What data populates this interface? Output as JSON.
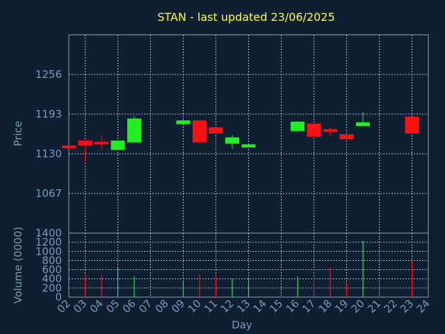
{
  "chart_data": {
    "title": "STAN - last updated 23/06/2025",
    "xlabel": "Day",
    "colors": {
      "up": "#22ee22",
      "down": "#ff1111",
      "background": "#0f1f33",
      "text": "#7a9ab8",
      "title": "#ffff33"
    },
    "x_ticks": [
      "02",
      "03",
      "04",
      "05",
      "06",
      "07",
      "08",
      "09",
      "10",
      "11",
      "12",
      "13",
      "14",
      "15",
      "16",
      "17",
      "18",
      "19",
      "20",
      "21",
      "22",
      "23",
      "24"
    ],
    "price_panel": {
      "type": "candlestick",
      "ylabel": "Price",
      "yticks": [
        1067,
        1130,
        1193,
        1256
      ],
      "ylim": [
        1004,
        1319
      ],
      "candles": [
        {
          "day": 2,
          "open": 1143,
          "close": 1139,
          "high": 1143,
          "low": 1139
        },
        {
          "day": 3,
          "open": 1151,
          "close": 1143,
          "high": 1152,
          "low": 1116
        },
        {
          "day": 4,
          "open": 1149,
          "close": 1145,
          "high": 1160,
          "low": 1137
        },
        {
          "day": 5,
          "open": 1136,
          "close": 1151,
          "high": 1151,
          "low": 1136
        },
        {
          "day": 6,
          "open": 1148,
          "close": 1186,
          "high": 1190,
          "low": 1148
        },
        {
          "day": 9,
          "open": 1177,
          "close": 1183,
          "high": 1185,
          "low": 1177
        },
        {
          "day": 10,
          "open": 1183,
          "close": 1148,
          "high": 1183,
          "low": 1148
        },
        {
          "day": 11,
          "open": 1172,
          "close": 1162,
          "high": 1172,
          "low": 1162
        },
        {
          "day": 12,
          "open": 1146,
          "close": 1156,
          "high": 1160,
          "low": 1138
        },
        {
          "day": 13,
          "open": 1140,
          "close": 1145,
          "high": 1145,
          "low": 1140
        },
        {
          "day": 16,
          "open": 1166,
          "close": 1181,
          "high": 1182,
          "low": 1164
        },
        {
          "day": 17,
          "open": 1178,
          "close": 1157,
          "high": 1178,
          "low": 1157
        },
        {
          "day": 18,
          "open": 1169,
          "close": 1165,
          "high": 1172,
          "low": 1158
        },
        {
          "day": 19,
          "open": 1161,
          "close": 1153,
          "high": 1161,
          "low": 1153
        },
        {
          "day": 20,
          "open": 1174,
          "close": 1180,
          "high": 1196,
          "low": 1174
        },
        {
          "day": 23,
          "open": 1189,
          "close": 1162,
          "high": 1189,
          "low": 1162
        }
      ]
    },
    "volume_panel": {
      "type": "bar",
      "ylabel": "Volume (0000)",
      "yticks": [
        0,
        200,
        400,
        600,
        800,
        1000,
        1200,
        1400
      ],
      "ylim": [
        0,
        1400
      ],
      "bars": [
        {
          "day": 3,
          "value": 500,
          "dir": "down"
        },
        {
          "day": 4,
          "value": 480,
          "dir": "down"
        },
        {
          "day": 5,
          "value": 650,
          "dir": "up"
        },
        {
          "day": 6,
          "value": 450,
          "dir": "up"
        },
        {
          "day": 9,
          "value": 350,
          "dir": "up"
        },
        {
          "day": 10,
          "value": 500,
          "dir": "down"
        },
        {
          "day": 11,
          "value": 480,
          "dir": "down"
        },
        {
          "day": 12,
          "value": 400,
          "dir": "up"
        },
        {
          "day": 13,
          "value": 430,
          "dir": "up"
        },
        {
          "day": 16,
          "value": 450,
          "dir": "up"
        },
        {
          "day": 17,
          "value": 480,
          "dir": "down"
        },
        {
          "day": 18,
          "value": 650,
          "dir": "down"
        },
        {
          "day": 19,
          "value": 280,
          "dir": "down"
        },
        {
          "day": 20,
          "value": 1230,
          "dir": "up"
        },
        {
          "day": 23,
          "value": 780,
          "dir": "down"
        }
      ]
    }
  }
}
